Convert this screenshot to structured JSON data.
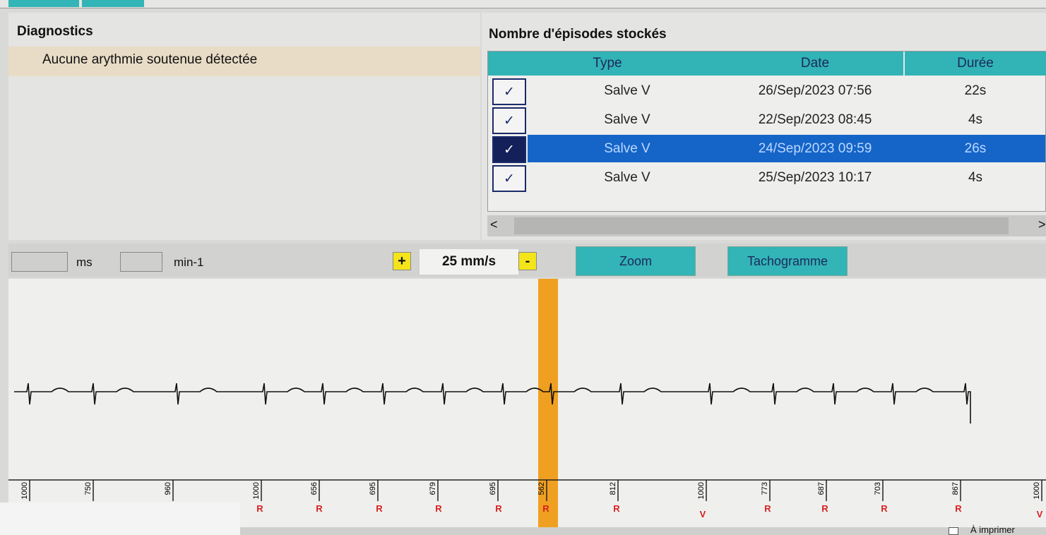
{
  "diagnostics": {
    "title": "Diagnostics",
    "items": [
      "Aucune arythmie soutenue détectée"
    ]
  },
  "episodes": {
    "title": "Nombre d'épisodes stockés",
    "columns": [
      "Type",
      "Date",
      "Durée"
    ],
    "rows": [
      [
        "Salve V",
        "26/Sep/2023 07:56",
        "22s"
      ],
      [
        "Salve V",
        "22/Sep/2023 08:45",
        "4s"
      ],
      [
        "Salve V",
        "24/Sep/2023 09:59",
        "26s"
      ],
      [
        "Salve V",
        "25/Sep/2023 10:17",
        "4s"
      ]
    ],
    "check": "✓",
    "selected_row": 2
  },
  "scrollbar": {
    "left": "<",
    "right": ">"
  },
  "toolbar": {
    "interval_unit": "ms",
    "rate_unit": "min-1",
    "zoom_in": "+",
    "speed": "25 mm/s",
    "zoom_out": "-",
    "zoom_button": "Zoom",
    "tachogram_button": "Tachogramme"
  },
  "ecg": {
    "intervals": [
      1000,
      750,
      960,
      1000,
      656,
      695,
      679,
      695,
      562,
      812,
      1000,
      773,
      687,
      703,
      867,
      1000
    ],
    "beats": [
      "R",
      "R",
      "R",
      "R",
      "R",
      "R",
      "R",
      "V",
      "R",
      "R",
      "R",
      "R",
      "V"
    ]
  },
  "footer": {
    "print": "À imprimer"
  }
}
